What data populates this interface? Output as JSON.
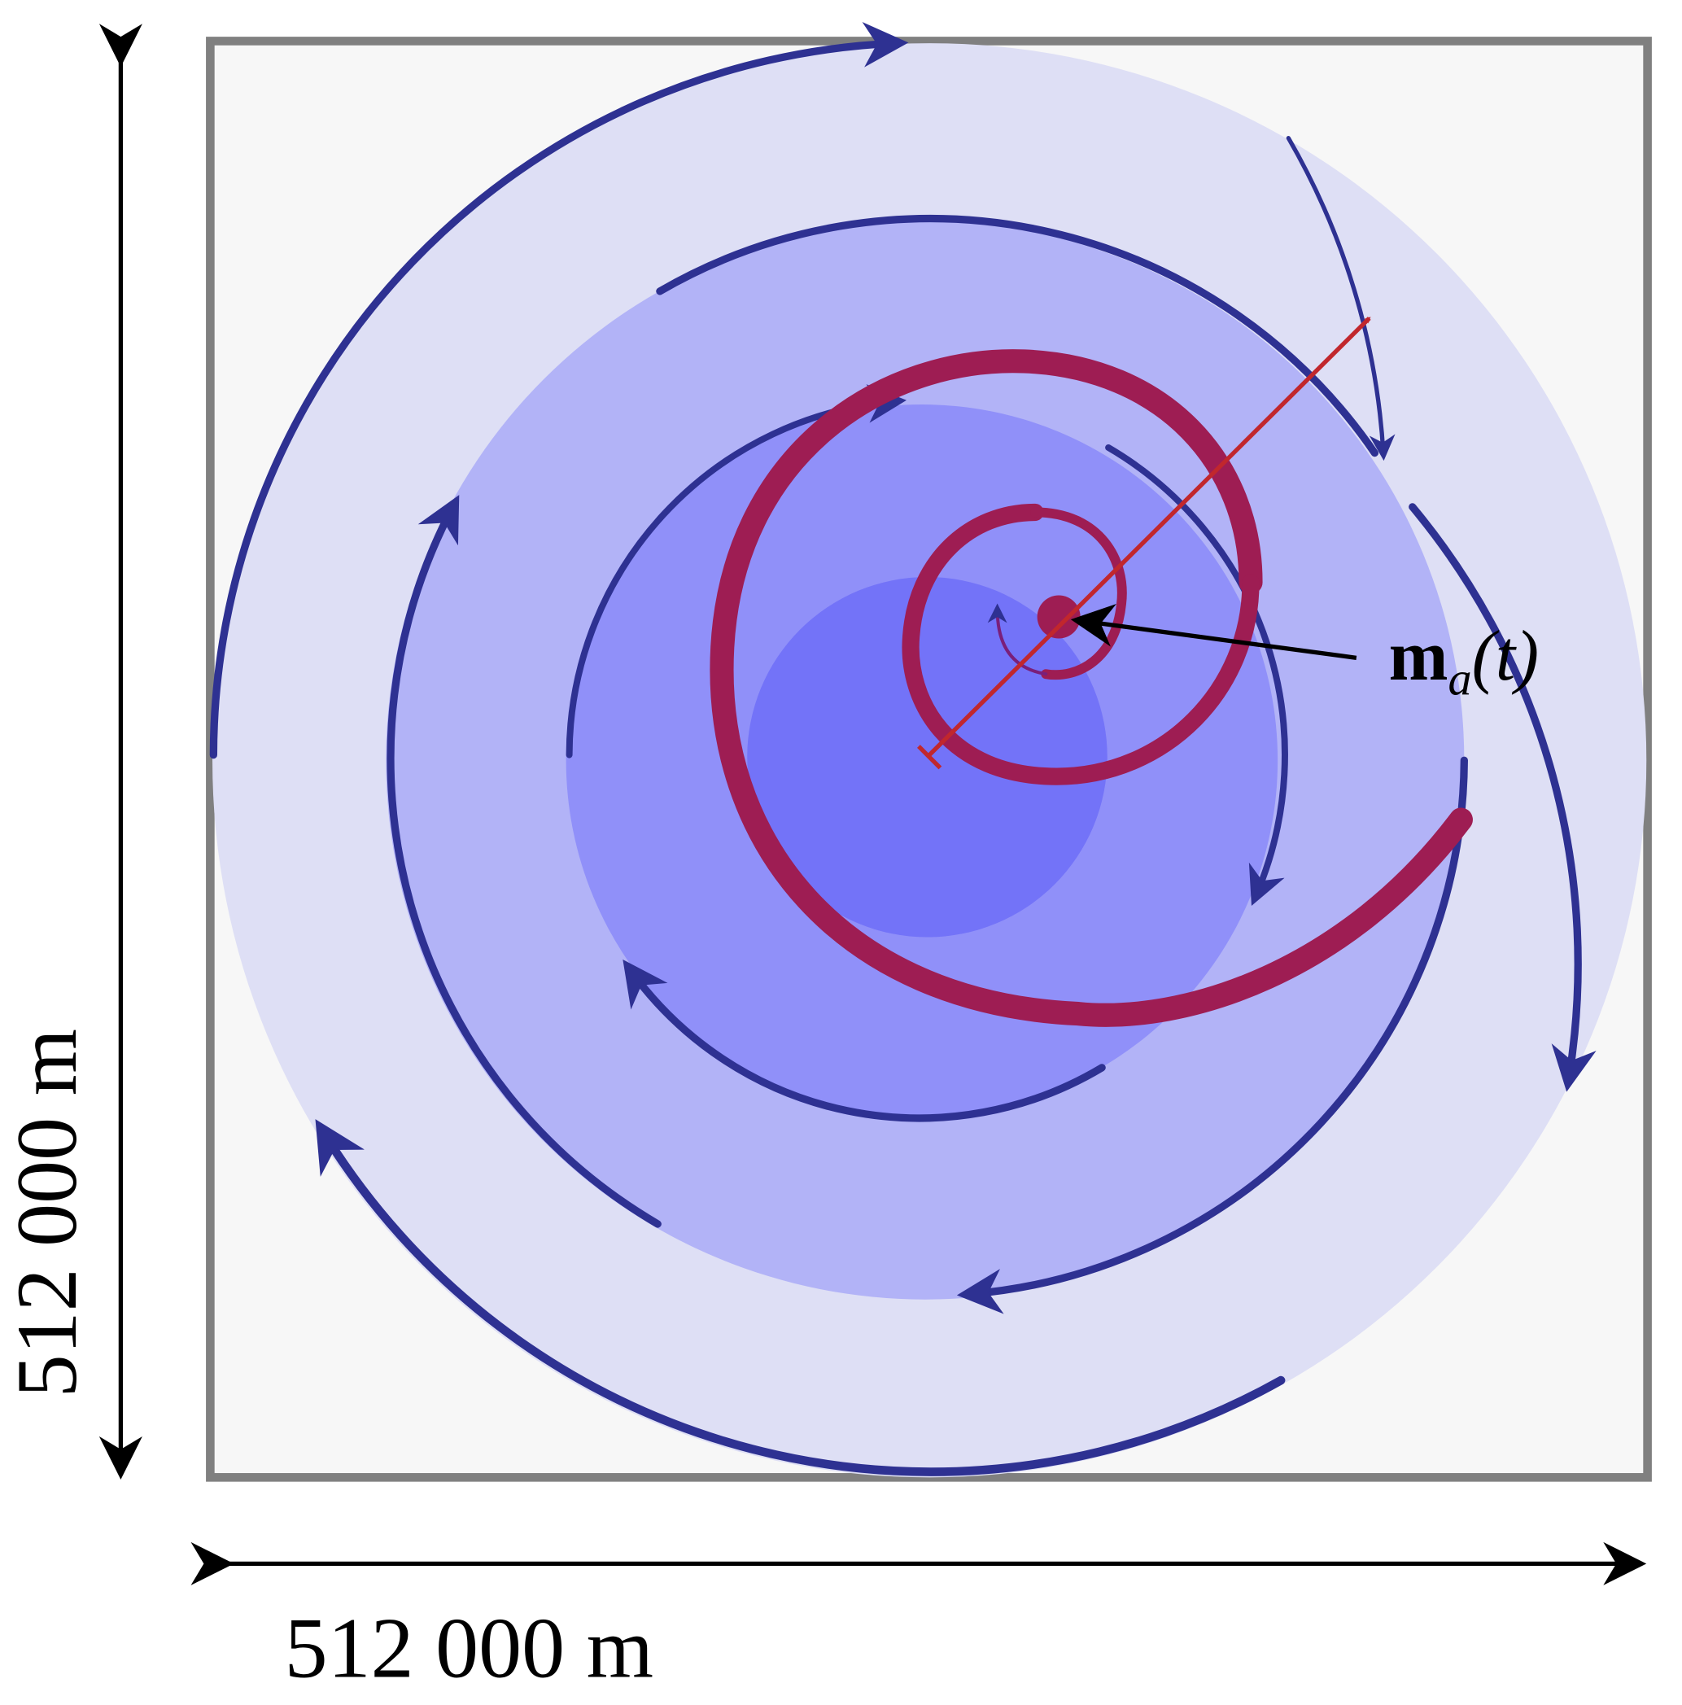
{
  "dimensions": {
    "width": "512 000 m",
    "height": "512 000 m"
  },
  "label": {
    "base": "m",
    "subscript": "a",
    "argument": "(t)"
  }
}
